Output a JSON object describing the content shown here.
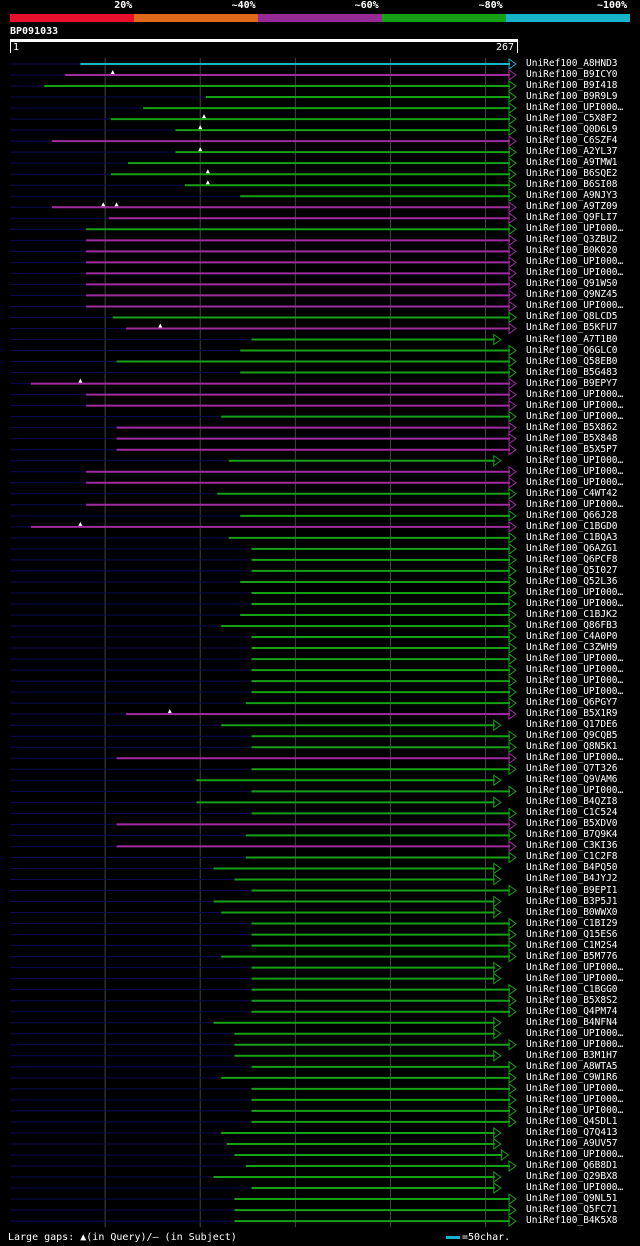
{
  "chart_data": {
    "type": "alignment",
    "query": {
      "name": "BP091033",
      "start": 1,
      "end": 267
    },
    "identity_legend": [
      {
        "label": "20%",
        "color": "#e8102a"
      },
      {
        "label": "~40%",
        "color": "#e06a1c"
      },
      {
        "label": "~60%",
        "color": "#962a96"
      },
      {
        "label": "~80%",
        "color": "#16a016"
      },
      {
        "label": "~100%",
        "color": "#16b4c8"
      }
    ],
    "hits": [
      {
        "name": "UniRef100_A8HND3",
        "start": 38,
        "end": 267,
        "color": "cyan",
        "gaps": []
      },
      {
        "name": "UniRef100_B9ICY0",
        "start": 30,
        "end": 267,
        "color": "magenta",
        "gaps": [
          55
        ]
      },
      {
        "name": "UniRef100_B9I418",
        "start": 19,
        "end": 267,
        "color": "green",
        "gaps": []
      },
      {
        "name": "UniRef100_B9R9L9",
        "start": 104,
        "end": 267,
        "color": "green",
        "gaps": []
      },
      {
        "name": "UniRef100_UPI000…",
        "start": 71,
        "end": 267,
        "color": "green",
        "gaps": []
      },
      {
        "name": "UniRef100_C5X8F2",
        "start": 54,
        "end": 267,
        "color": "green",
        "gaps": [
          103
        ]
      },
      {
        "name": "UniRef100_Q0D6L9",
        "start": 88,
        "end": 267,
        "color": "green",
        "gaps": [
          101
        ]
      },
      {
        "name": "UniRef100_C6SZF4",
        "start": 23,
        "end": 267,
        "color": "magenta",
        "gaps": []
      },
      {
        "name": "UniRef100_A2YL37",
        "start": 88,
        "end": 267,
        "color": "green",
        "gaps": [
          101
        ]
      },
      {
        "name": "UniRef100_A9TMW1",
        "start": 63,
        "end": 267,
        "color": "green",
        "gaps": []
      },
      {
        "name": "UniRef100_B6SQE2",
        "start": 54,
        "end": 267,
        "color": "green",
        "gaps": [
          105
        ]
      },
      {
        "name": "UniRef100_B6SI08",
        "start": 93,
        "end": 267,
        "color": "green",
        "gaps": [
          105
        ]
      },
      {
        "name": "UniRef100_A9NJY3",
        "start": 122,
        "end": 267,
        "color": "green",
        "gaps": []
      },
      {
        "name": "UniRef100_A9TZ09",
        "start": 23,
        "end": 267,
        "color": "magenta",
        "gaps": [
          50,
          57
        ]
      },
      {
        "name": "UniRef100_Q9FLI7",
        "start": 53,
        "end": 267,
        "color": "magenta",
        "gaps": []
      },
      {
        "name": "UniRef100_UPI000…",
        "start": 41,
        "end": 267,
        "color": "green",
        "gaps": []
      },
      {
        "name": "UniRef100_Q3ZBU2",
        "start": 41,
        "end": 267,
        "color": "magenta",
        "gaps": []
      },
      {
        "name": "UniRef100_B0K020",
        "start": 41,
        "end": 267,
        "color": "magenta",
        "gaps": []
      },
      {
        "name": "UniRef100_UPI000…",
        "start": 41,
        "end": 267,
        "color": "magenta",
        "gaps": []
      },
      {
        "name": "UniRef100_UPI000…",
        "start": 41,
        "end": 267,
        "color": "magenta",
        "gaps": []
      },
      {
        "name": "UniRef100_Q91WS0",
        "start": 41,
        "end": 267,
        "color": "magenta",
        "gaps": []
      },
      {
        "name": "UniRef100_Q9NZ45",
        "start": 41,
        "end": 267,
        "color": "magenta",
        "gaps": []
      },
      {
        "name": "UniRef100_UPI000…",
        "start": 41,
        "end": 267,
        "color": "magenta",
        "gaps": []
      },
      {
        "name": "UniRef100_Q8LCD5",
        "start": 55,
        "end": 267,
        "color": "green",
        "gaps": []
      },
      {
        "name": "UniRef100_B5KFU7",
        "start": 62,
        "end": 267,
        "color": "magenta",
        "gaps": [
          80
        ]
      },
      {
        "name": "UniRef100_A7T1B0",
        "start": 128,
        "end": 259,
        "color": "green",
        "gaps": []
      },
      {
        "name": "UniRef100_Q6GLC0",
        "start": 122,
        "end": 267,
        "color": "green",
        "gaps": []
      },
      {
        "name": "UniRef100_Q58EB0",
        "start": 57,
        "end": 267,
        "color": "green",
        "gaps": []
      },
      {
        "name": "UniRef100_B5G483",
        "start": 122,
        "end": 267,
        "color": "green",
        "gaps": []
      },
      {
        "name": "UniRef100_B9EPY7",
        "start": 12,
        "end": 267,
        "color": "magenta",
        "gaps": [
          38
        ]
      },
      {
        "name": "UniRef100_UPI000…",
        "start": 41,
        "end": 267,
        "color": "magenta",
        "gaps": []
      },
      {
        "name": "UniRef100_UPI000…",
        "start": 41,
        "end": 267,
        "color": "magenta",
        "gaps": []
      },
      {
        "name": "UniRef100_UPI000…",
        "start": 112,
        "end": 267,
        "color": "green",
        "gaps": []
      },
      {
        "name": "UniRef100_B5X862",
        "start": 57,
        "end": 267,
        "color": "magenta",
        "gaps": []
      },
      {
        "name": "UniRef100_B5X848",
        "start": 57,
        "end": 267,
        "color": "magenta",
        "gaps": []
      },
      {
        "name": "UniRef100_B5X5P7",
        "start": 57,
        "end": 267,
        "color": "magenta",
        "gaps": []
      },
      {
        "name": "UniRef100_UPI000…",
        "start": 116,
        "end": 259,
        "color": "green",
        "gaps": []
      },
      {
        "name": "UniRef100_UPI000…",
        "start": 41,
        "end": 267,
        "color": "magenta",
        "gaps": []
      },
      {
        "name": "UniRef100_UPI000…",
        "start": 41,
        "end": 267,
        "color": "magenta",
        "gaps": []
      },
      {
        "name": "UniRef100_C4WT42",
        "start": 110,
        "end": 267,
        "color": "green",
        "gaps": []
      },
      {
        "name": "UniRef100_UPI000…",
        "start": 41,
        "end": 267,
        "color": "magenta",
        "gaps": []
      },
      {
        "name": "UniRef100_Q66J28",
        "start": 122,
        "end": 267,
        "color": "green",
        "gaps": []
      },
      {
        "name": "UniRef100_C1BGD0",
        "start": 12,
        "end": 267,
        "color": "magenta",
        "gaps": [
          38
        ]
      },
      {
        "name": "UniRef100_C1BQA3",
        "start": 116,
        "end": 267,
        "color": "green",
        "gaps": []
      },
      {
        "name": "UniRef100_Q6AZG1",
        "start": 128,
        "end": 267,
        "color": "green",
        "gaps": []
      },
      {
        "name": "UniRef100_Q6PCF8",
        "start": 128,
        "end": 267,
        "color": "green",
        "gaps": []
      },
      {
        "name": "UniRef100_Q5I027",
        "start": 128,
        "end": 267,
        "color": "green",
        "gaps": []
      },
      {
        "name": "UniRef100_Q52L36",
        "start": 122,
        "end": 267,
        "color": "green",
        "gaps": []
      },
      {
        "name": "UniRef100_UPI000…",
        "start": 128,
        "end": 267,
        "color": "green",
        "gaps": []
      },
      {
        "name": "UniRef100_UPI000…",
        "start": 128,
        "end": 267,
        "color": "green",
        "gaps": []
      },
      {
        "name": "UniRef100_C1BJK2",
        "start": 122,
        "end": 267,
        "color": "green",
        "gaps": []
      },
      {
        "name": "UniRef100_Q86FB3",
        "start": 112,
        "end": 267,
        "color": "green",
        "gaps": []
      },
      {
        "name": "UniRef100_C4A0P0",
        "start": 128,
        "end": 267,
        "color": "green",
        "gaps": []
      },
      {
        "name": "UniRef100_C3ZWH9",
        "start": 128,
        "end": 267,
        "color": "green",
        "gaps": []
      },
      {
        "name": "UniRef100_UPI000…",
        "start": 128,
        "end": 267,
        "color": "green",
        "gaps": []
      },
      {
        "name": "UniRef100_UPI000…",
        "start": 128,
        "end": 267,
        "color": "green",
        "gaps": []
      },
      {
        "name": "UniRef100_UPI000…",
        "start": 128,
        "end": 267,
        "color": "green",
        "gaps": []
      },
      {
        "name": "UniRef100_UPI000…",
        "start": 128,
        "end": 267,
        "color": "green",
        "gaps": []
      },
      {
        "name": "UniRef100_Q6PGY7",
        "start": 125,
        "end": 267,
        "color": "green",
        "gaps": []
      },
      {
        "name": "UniRef100_B5X1R9",
        "start": 62,
        "end": 267,
        "color": "magenta",
        "gaps": [
          85
        ]
      },
      {
        "name": "UniRef100_Q17DE6",
        "start": 112,
        "end": 259,
        "color": "green",
        "gaps": []
      },
      {
        "name": "UniRef100_Q9CQB5",
        "start": 128,
        "end": 267,
        "color": "green",
        "gaps": []
      },
      {
        "name": "UniRef100_Q8N5K1",
        "start": 128,
        "end": 267,
        "color": "green",
        "gaps": []
      },
      {
        "name": "UniRef100_UPI000…",
        "start": 57,
        "end": 267,
        "color": "magenta",
        "gaps": []
      },
      {
        "name": "UniRef100_Q7T326",
        "start": 128,
        "end": 267,
        "color": "green",
        "gaps": []
      },
      {
        "name": "UniRef100_Q9VAM6",
        "start": 99,
        "end": 259,
        "color": "green",
        "gaps": []
      },
      {
        "name": "UniRef100_UPI000…",
        "start": 128,
        "end": 267,
        "color": "green",
        "gaps": []
      },
      {
        "name": "UniRef100_B4QZI8",
        "start": 99,
        "end": 259,
        "color": "green",
        "gaps": []
      },
      {
        "name": "UniRef100_C1C524",
        "start": 128,
        "end": 267,
        "color": "green",
        "gaps": []
      },
      {
        "name": "UniRef100_B5XDV0",
        "start": 57,
        "end": 267,
        "color": "magenta",
        "gaps": []
      },
      {
        "name": "UniRef100_B7Q9K4",
        "start": 125,
        "end": 267,
        "color": "green",
        "gaps": []
      },
      {
        "name": "UniRef100_C3KI36",
        "start": 57,
        "end": 267,
        "color": "magenta",
        "gaps": []
      },
      {
        "name": "UniRef100_C1C2F8",
        "start": 125,
        "end": 267,
        "color": "green",
        "gaps": []
      },
      {
        "name": "UniRef100_B4PQ50",
        "start": 108,
        "end": 259,
        "color": "green",
        "gaps": []
      },
      {
        "name": "UniRef100_B4JYJ2",
        "start": 119,
        "end": 259,
        "color": "green",
        "gaps": []
      },
      {
        "name": "UniRef100_B9EPI1",
        "start": 128,
        "end": 267,
        "color": "green",
        "gaps": []
      },
      {
        "name": "UniRef100_B3P5J1",
        "start": 108,
        "end": 259,
        "color": "green",
        "gaps": []
      },
      {
        "name": "UniRef100_B0WWX0",
        "start": 112,
        "end": 259,
        "color": "green",
        "gaps": []
      },
      {
        "name": "UniRef100_C1BI29",
        "start": 128,
        "end": 267,
        "color": "green",
        "gaps": []
      },
      {
        "name": "UniRef100_Q15ES6",
        "start": 128,
        "end": 267,
        "color": "green",
        "gaps": []
      },
      {
        "name": "UniRef100_C1M2S4",
        "start": 128,
        "end": 267,
        "color": "green",
        "gaps": []
      },
      {
        "name": "UniRef100_B5M776",
        "start": 112,
        "end": 267,
        "color": "green",
        "gaps": []
      },
      {
        "name": "UniRef100_UPI000…",
        "start": 128,
        "end": 259,
        "color": "green",
        "gaps": []
      },
      {
        "name": "UniRef100_UPI000…",
        "start": 128,
        "end": 259,
        "color": "green",
        "gaps": []
      },
      {
        "name": "UniRef100_C1BGG0",
        "start": 128,
        "end": 267,
        "color": "green",
        "gaps": []
      },
      {
        "name": "UniRef100_B5X8S2",
        "start": 128,
        "end": 267,
        "color": "green",
        "gaps": []
      },
      {
        "name": "UniRef100_Q4PM74",
        "start": 128,
        "end": 267,
        "color": "green",
        "gaps": []
      },
      {
        "name": "UniRef100_B4NFN4",
        "start": 108,
        "end": 259,
        "color": "green",
        "gaps": []
      },
      {
        "name": "UniRef100_UPI000…",
        "start": 119,
        "end": 259,
        "color": "green",
        "gaps": []
      },
      {
        "name": "UniRef100_UPI000…",
        "start": 119,
        "end": 267,
        "color": "green",
        "gaps": []
      },
      {
        "name": "UniRef100_B3M1H7",
        "start": 119,
        "end": 259,
        "color": "green",
        "gaps": []
      },
      {
        "name": "UniRef100_A8WTA5",
        "start": 128,
        "end": 267,
        "color": "green",
        "gaps": []
      },
      {
        "name": "UniRef100_C9W1R6",
        "start": 112,
        "end": 267,
        "color": "green",
        "gaps": []
      },
      {
        "name": "UniRef100_UPI000…",
        "start": 128,
        "end": 267,
        "color": "green",
        "gaps": []
      },
      {
        "name": "UniRef100_UPI000…",
        "start": 128,
        "end": 267,
        "color": "green",
        "gaps": []
      },
      {
        "name": "UniRef100_UPI000…",
        "start": 128,
        "end": 267,
        "color": "green",
        "gaps": []
      },
      {
        "name": "UniRef100_Q4SDL1",
        "start": 128,
        "end": 267,
        "color": "green",
        "gaps": []
      },
      {
        "name": "UniRef100_Q7Q413",
        "start": 112,
        "end": 259,
        "color": "green",
        "gaps": []
      },
      {
        "name": "UniRef100_A9UV57",
        "start": 115,
        "end": 259,
        "color": "green",
        "gaps": []
      },
      {
        "name": "UniRef100_UPI000…",
        "start": 119,
        "end": 263,
        "color": "green",
        "gaps": []
      },
      {
        "name": "UniRef100_Q6B8D1",
        "start": 125,
        "end": 267,
        "color": "green",
        "gaps": []
      },
      {
        "name": "UniRef100_Q29BX8",
        "start": 108,
        "end": 259,
        "color": "green",
        "gaps": []
      },
      {
        "name": "UniRef100_UPI000…",
        "start": 128,
        "end": 259,
        "color": "green",
        "gaps": []
      },
      {
        "name": "UniRef100_Q9NL51",
        "start": 119,
        "end": 267,
        "color": "green",
        "gaps": []
      },
      {
        "name": "UniRef100_Q5FC71",
        "start": 119,
        "end": 267,
        "color": "green",
        "gaps": []
      },
      {
        "name": "UniRef100_B4K5X8",
        "start": 119,
        "end": 267,
        "color": "green",
        "gaps": []
      }
    ],
    "footer": {
      "large_gaps_label": "Large gaps: ",
      "in_query": "(in Query)/",
      "in_subject": "– (in Subject)"
    },
    "scale_label": "=50char."
  },
  "colors": {
    "cyan": "#16b4c8",
    "magenta": "#a02ca0",
    "green": "#16a016",
    "navy": "#0a0a55",
    "grid": "#444444"
  }
}
